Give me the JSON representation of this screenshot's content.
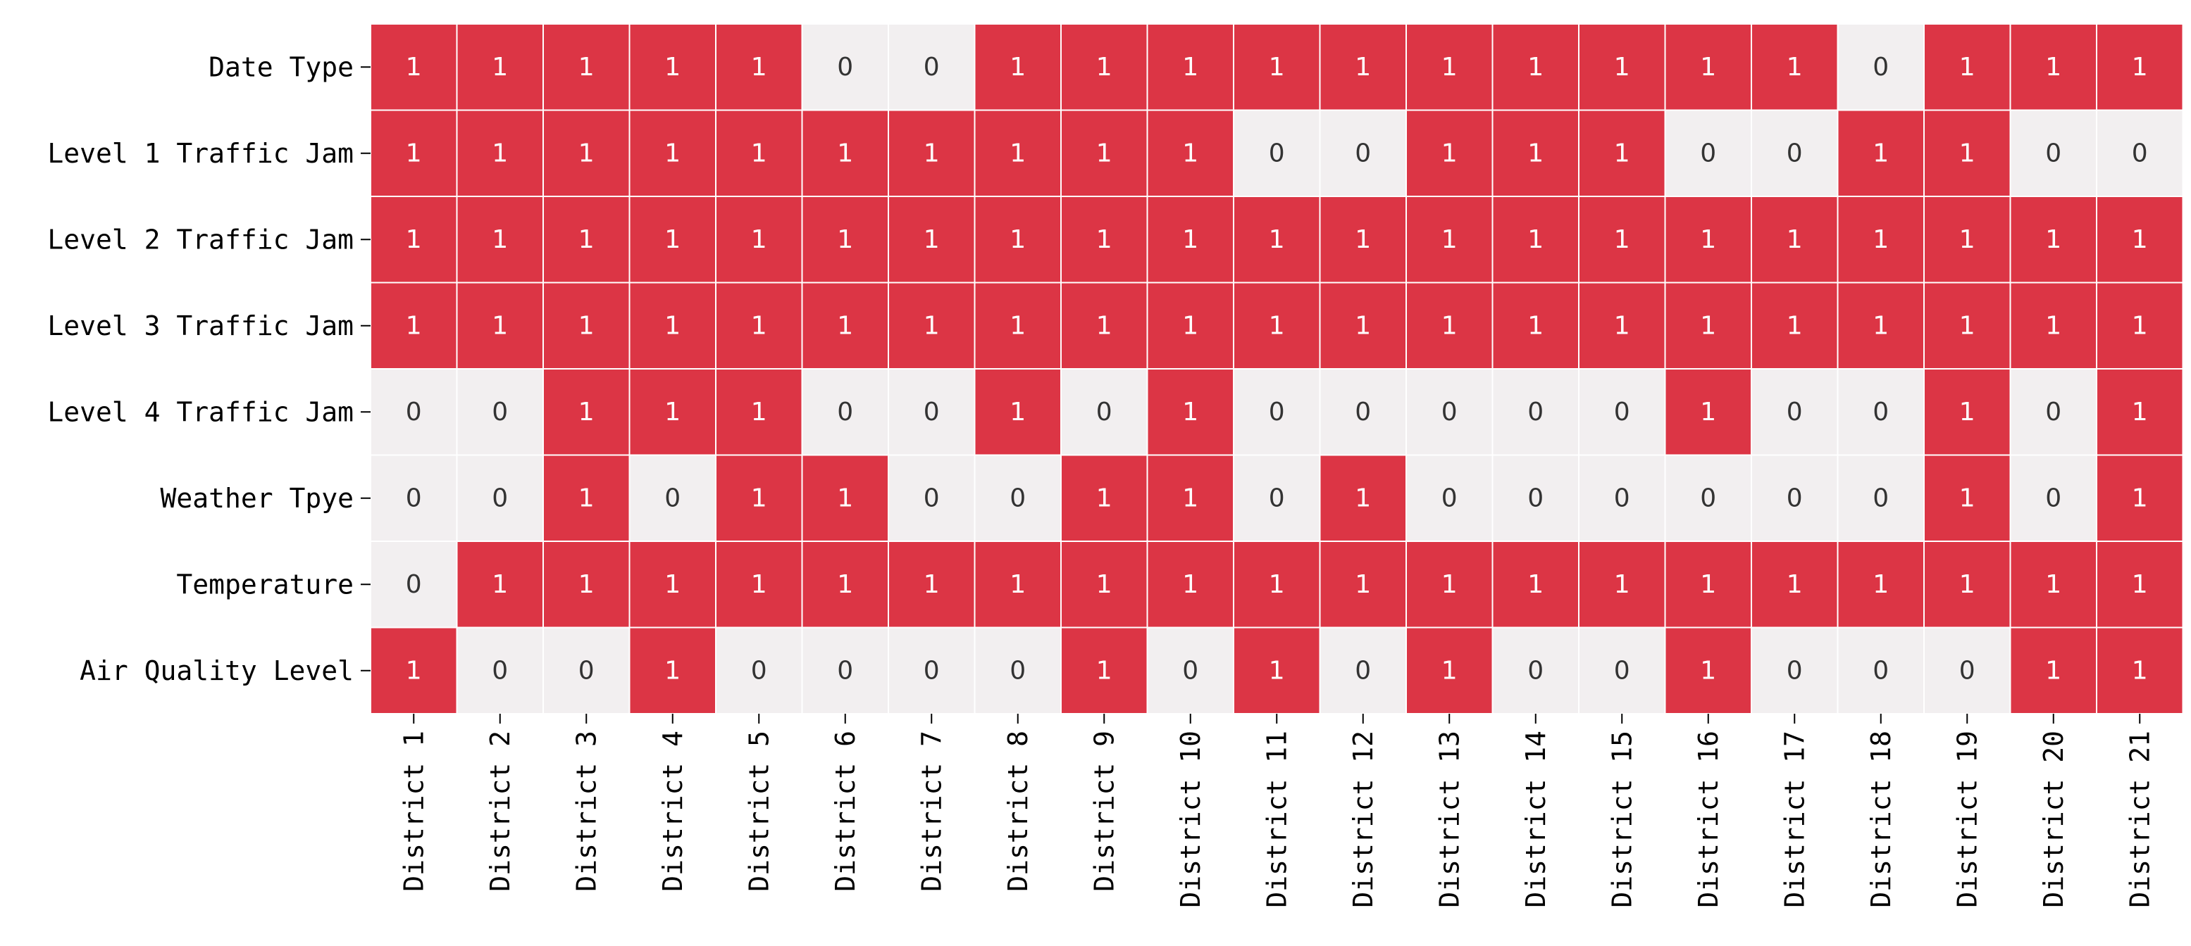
{
  "chart_data": {
    "type": "heatmap",
    "title": "",
    "xlabel": "",
    "ylabel": "",
    "rows": [
      "Date Type",
      "Level 1 Traffic Jam",
      "Level 2 Traffic Jam",
      "Level 3 Traffic Jam",
      "Level 4 Traffic Jam",
      "Weather Tpye",
      "Temperature",
      "Air Quality Level"
    ],
    "columns": [
      "District 1",
      "District 2",
      "District 3",
      "District 4",
      "District 5",
      "District 6",
      "District 7",
      "District 8",
      "District 9",
      "District 10",
      "District 11",
      "District 12",
      "District 13",
      "District 14",
      "District 15",
      "District 16",
      "District 17",
      "District 18",
      "District 19",
      "District 20",
      "District 21"
    ],
    "values": [
      [
        1,
        1,
        1,
        1,
        1,
        0,
        0,
        1,
        1,
        1,
        1,
        1,
        1,
        1,
        1,
        1,
        1,
        0,
        1,
        1,
        1
      ],
      [
        1,
        1,
        1,
        1,
        1,
        1,
        1,
        1,
        1,
        1,
        0,
        0,
        1,
        1,
        1,
        0,
        0,
        1,
        1,
        0,
        0
      ],
      [
        1,
        1,
        1,
        1,
        1,
        1,
        1,
        1,
        1,
        1,
        1,
        1,
        1,
        1,
        1,
        1,
        1,
        1,
        1,
        1,
        1
      ],
      [
        1,
        1,
        1,
        1,
        1,
        1,
        1,
        1,
        1,
        1,
        1,
        1,
        1,
        1,
        1,
        1,
        1,
        1,
        1,
        1,
        1
      ],
      [
        0,
        0,
        1,
        1,
        1,
        0,
        0,
        1,
        0,
        1,
        0,
        0,
        0,
        0,
        0,
        1,
        0,
        0,
        1,
        0,
        1
      ],
      [
        0,
        0,
        1,
        0,
        1,
        1,
        0,
        0,
        1,
        1,
        0,
        1,
        0,
        0,
        0,
        0,
        0,
        0,
        1,
        0,
        1
      ],
      [
        0,
        1,
        1,
        1,
        1,
        1,
        1,
        1,
        1,
        1,
        1,
        1,
        1,
        1,
        1,
        1,
        1,
        1,
        1,
        1,
        1
      ],
      [
        1,
        0,
        0,
        1,
        0,
        0,
        0,
        0,
        1,
        0,
        1,
        0,
        1,
        0,
        0,
        1,
        0,
        0,
        0,
        1,
        1
      ]
    ],
    "colors": {
      "one": "#dc3545",
      "zero": "#f2eff0",
      "grid": "#ffffff",
      "text_on_one": "#ffffff",
      "text_on_zero": "#333333"
    }
  }
}
